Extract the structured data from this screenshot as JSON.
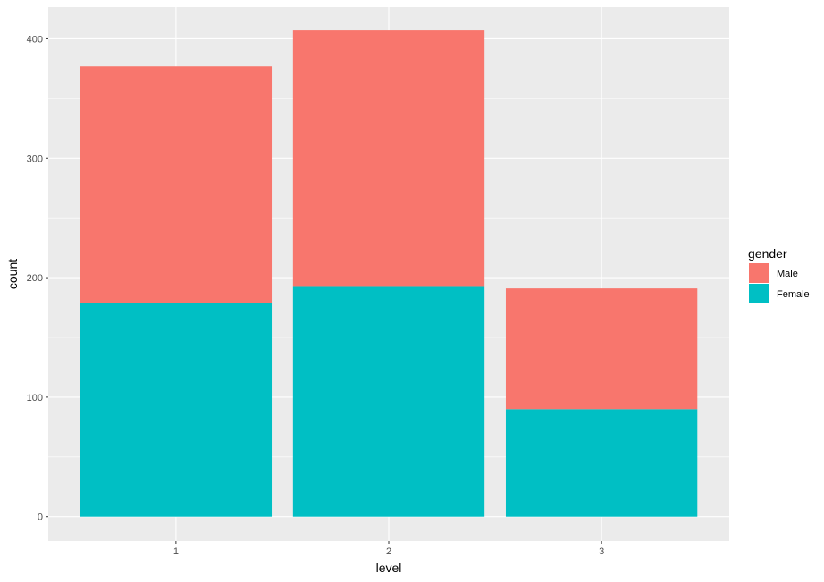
{
  "chart_data": {
    "type": "bar",
    "stacked": true,
    "title": "",
    "xlabel": "level",
    "ylabel": "count",
    "categories": [
      "1",
      "2",
      "3"
    ],
    "series": [
      {
        "name": "Male",
        "values": [
          198,
          214,
          101
        ],
        "color": "#F8766D"
      },
      {
        "name": "Female",
        "values": [
          179,
          193,
          90
        ],
        "color": "#00BFC4"
      }
    ],
    "ylim": [
      -20.4,
      426.5
    ],
    "yticks": [
      0,
      100,
      200,
      300,
      400
    ],
    "ytick_labels": [
      "0",
      "100",
      "200",
      "300",
      "400"
    ],
    "grid": true,
    "legend": {
      "title": "gender",
      "placement": "right",
      "entries": [
        "Male",
        "Female"
      ]
    }
  }
}
